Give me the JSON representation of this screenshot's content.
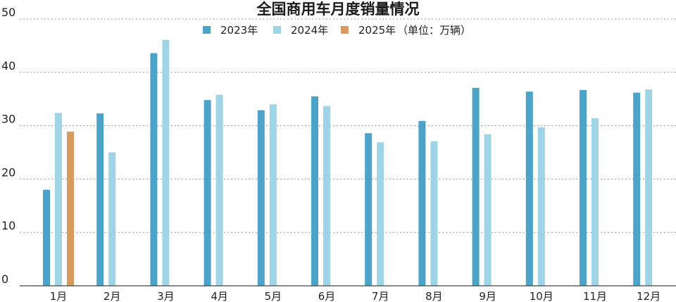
{
  "chart_data": {
    "type": "bar",
    "title": "全国商用车月度销量情况",
    "categories": [
      "1月",
      "2月",
      "3月",
      "4月",
      "5月",
      "6月",
      "7月",
      "8月",
      "9月",
      "10月",
      "11月",
      "12月"
    ],
    "series": [
      {
        "name": "2023年",
        "color": "#4ba3c7",
        "values": [
          18.0,
          32.3,
          43.6,
          34.8,
          32.9,
          35.5,
          28.6,
          30.9,
          37.1,
          36.4,
          36.7,
          36.2
        ]
      },
      {
        "name": "2024年",
        "color": "#9fd3e6",
        "values": [
          32.4,
          25.0,
          46.1,
          35.8,
          34.0,
          33.7,
          26.9,
          27.1,
          28.4,
          29.7,
          31.4,
          36.8
        ]
      },
      {
        "name": "2025年",
        "color": "#d99a5f",
        "values": [
          28.9,
          null,
          null,
          null,
          null,
          null,
          null,
          null,
          null,
          null,
          null,
          null
        ]
      }
    ],
    "unit_note": "（单位：万辆）",
    "ylim": [
      0,
      50
    ],
    "yticks": [
      0,
      10,
      20,
      30,
      40,
      50
    ],
    "grid": true,
    "legend_position": "top-center"
  }
}
